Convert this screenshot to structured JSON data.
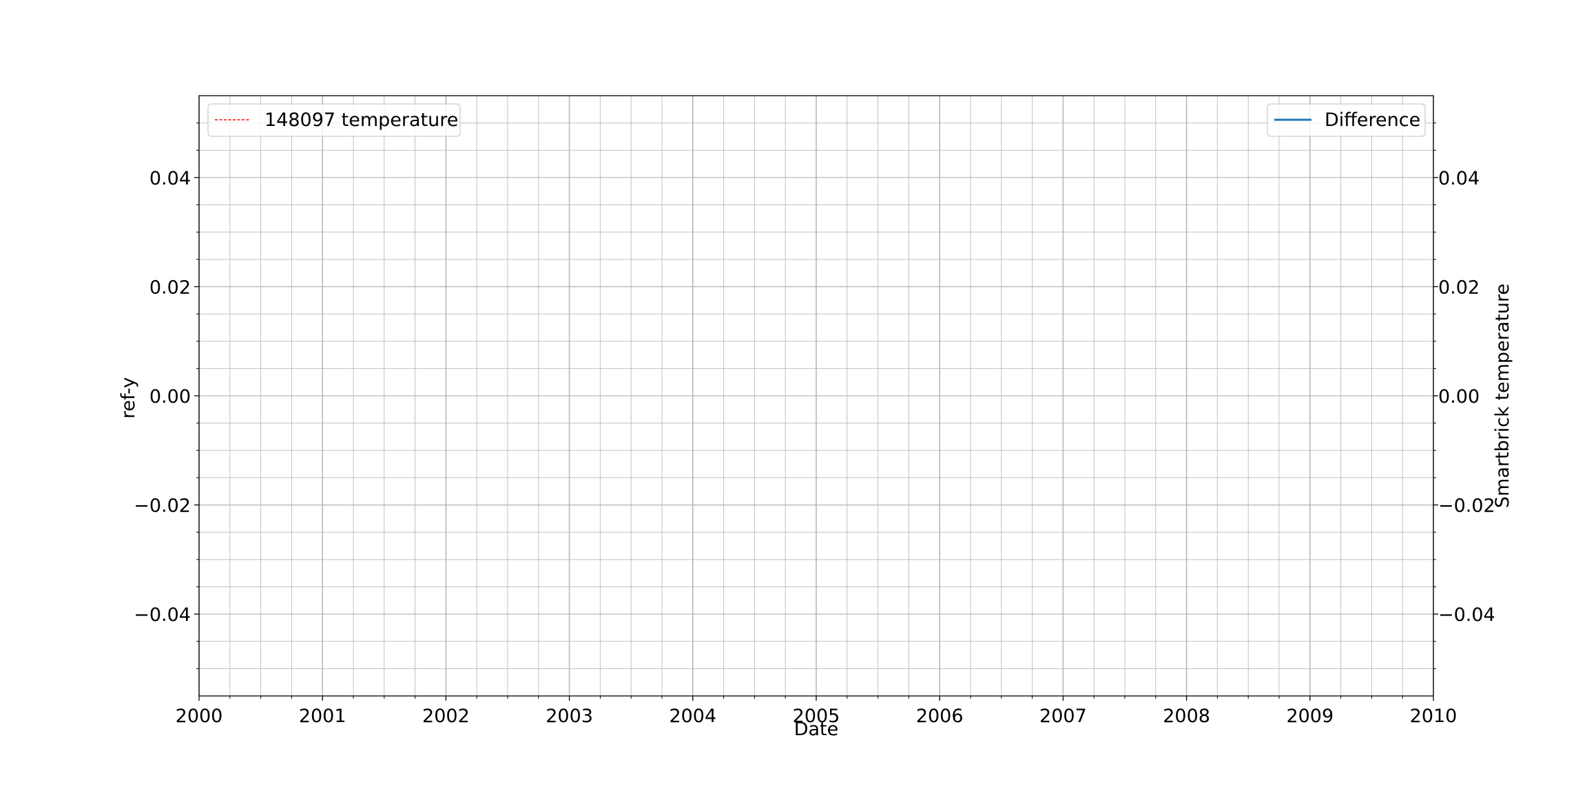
{
  "chart_data": {
    "type": "line",
    "title": "",
    "xlabel": "Date",
    "ylabel_left": "ref-y",
    "ylabel_right": "Smartbrick temperature",
    "x_range": [
      "2000",
      "2010"
    ],
    "xticks": [
      "2000",
      "2001",
      "2002",
      "2003",
      "2004",
      "2005",
      "2006",
      "2007",
      "2008",
      "2009",
      "2010"
    ],
    "y_left_range": [
      -0.055,
      0.055
    ],
    "y_right_range": [
      -0.055,
      0.055
    ],
    "yticks_left": [
      {
        "value": 0.04,
        "label": "0.04"
      },
      {
        "value": 0.02,
        "label": "0.02"
      },
      {
        "value": 0.0,
        "label": "0.00"
      },
      {
        "value": -0.02,
        "label": "−0.02"
      },
      {
        "value": -0.04,
        "label": "−0.04"
      }
    ],
    "yticks_right": [
      {
        "value": 0.04,
        "label": "0.04"
      },
      {
        "value": 0.02,
        "label": "0.02"
      },
      {
        "value": 0.0,
        "label": "0.00"
      },
      {
        "value": -0.02,
        "label": "−0.02"
      },
      {
        "value": -0.04,
        "label": "−0.04"
      }
    ],
    "grid": true,
    "series": [
      {
        "name": "148097 temperature",
        "axis": "left",
        "color": "#ff0000",
        "style": "dashed",
        "values": []
      },
      {
        "name": "Difference",
        "axis": "right",
        "color": "#1f77b4",
        "style": "solid",
        "values": []
      }
    ],
    "legends": [
      {
        "placement": "top-left",
        "entries": [
          "148097 temperature"
        ]
      },
      {
        "placement": "top-right",
        "entries": [
          "Difference"
        ]
      }
    ]
  }
}
